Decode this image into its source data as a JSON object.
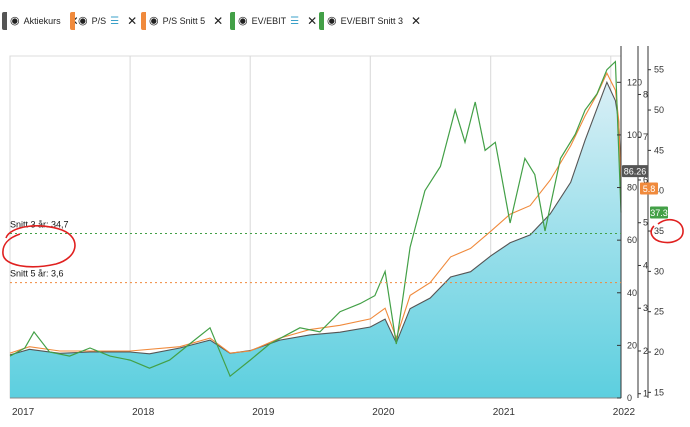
{
  "legend": {
    "items": [
      {
        "label": "Aktiekurs",
        "color": "#555555",
        "stack": false
      },
      {
        "label": "P/S",
        "color": "#f08a3c",
        "stack": true
      },
      {
        "label": "P/S Snitt 5",
        "color": "#f08a3c",
        "stack": false
      },
      {
        "label": "EV/EBIT",
        "color": "#43a047",
        "stack": true
      },
      {
        "label": "EV/EBIT Snitt 3",
        "color": "#43a047",
        "stack": false
      }
    ]
  },
  "chart_data": {
    "type": "line",
    "x_ticks": [
      "2017",
      "2018",
      "2019",
      "2020",
      "2021",
      "2022"
    ],
    "x_range": [
      "2017-01-01",
      "2022-02-01"
    ],
    "axes": {
      "price": {
        "ticks": [
          0,
          20,
          40,
          60,
          80,
          100,
          120
        ],
        "range": [
          0,
          130
        ]
      },
      "ps": {
        "ticks": [
          1,
          2,
          3,
          4,
          5,
          6,
          7,
          8
        ],
        "range": [
          0.9,
          8.9
        ]
      },
      "evebit": {
        "ticks": [
          15,
          20,
          25,
          30,
          35,
          40,
          45,
          50,
          55
        ],
        "range": [
          14.3,
          56.7
        ]
      }
    },
    "reference_lines": [
      {
        "label": "Snitt 3 år: 34,7",
        "value": 34.7,
        "axis": "evebit",
        "color": "#43a047"
      },
      {
        "label": "Snitt 5 år: 3,6",
        "value": 3.6,
        "axis": "ps",
        "color": "#f08a3c"
      }
    ],
    "end_labels": [
      {
        "value": "86.26",
        "color": "#555555"
      },
      {
        "value": "5.8",
        "color": "#f08a3c"
      },
      {
        "value": "37.3",
        "color": "#43a047"
      }
    ],
    "series": [
      {
        "name": "Aktiekurs",
        "axis": "price",
        "color": "#555555",
        "points": [
          [
            "2017-01-01",
            16.4
          ],
          [
            "2017-03-01",
            18.5
          ],
          [
            "2017-06-01",
            17
          ],
          [
            "2017-09-01",
            17.5
          ],
          [
            "2018-01-01",
            17.5
          ],
          [
            "2018-03-01",
            16.8
          ],
          [
            "2018-06-01",
            19
          ],
          [
            "2018-09-01",
            22
          ],
          [
            "2018-11-01",
            17
          ],
          [
            "2019-01-01",
            18
          ],
          [
            "2019-04-01",
            22
          ],
          [
            "2019-07-01",
            24
          ],
          [
            "2019-10-01",
            25
          ],
          [
            "2020-01-01",
            27
          ],
          [
            "2020-02-15",
            30
          ],
          [
            "2020-03-20",
            21
          ],
          [
            "2020-05-01",
            34
          ],
          [
            "2020-07-01",
            38
          ],
          [
            "2020-09-01",
            46
          ],
          [
            "2020-11-01",
            48
          ],
          [
            "2021-01-01",
            54
          ],
          [
            "2021-03-01",
            59
          ],
          [
            "2021-05-01",
            62
          ],
          [
            "2021-07-01",
            70
          ],
          [
            "2021-09-01",
            82
          ],
          [
            "2021-10-15",
            98
          ],
          [
            "2021-11-20",
            110
          ],
          [
            "2021-12-20",
            120
          ],
          [
            "2022-01-15",
            113
          ],
          [
            "2022-01-25",
            105
          ],
          [
            "2022-02-01",
            86.26
          ]
        ]
      },
      {
        "name": "P/S",
        "axis": "ps",
        "color": "#f08a3c",
        "points": [
          [
            "2017-01-01",
            1.95
          ],
          [
            "2017-03-01",
            2.1
          ],
          [
            "2017-06-01",
            2.0
          ],
          [
            "2017-09-01",
            2.0
          ],
          [
            "2018-01-01",
            2.0
          ],
          [
            "2018-06-01",
            2.1
          ],
          [
            "2018-09-01",
            2.3
          ],
          [
            "2018-11-01",
            1.95
          ],
          [
            "2019-01-01",
            2.0
          ],
          [
            "2019-04-01",
            2.3
          ],
          [
            "2019-07-01",
            2.5
          ],
          [
            "2019-10-01",
            2.6
          ],
          [
            "2020-01-01",
            2.75
          ],
          [
            "2020-02-15",
            3.0
          ],
          [
            "2020-03-20",
            2.3
          ],
          [
            "2020-05-01",
            3.3
          ],
          [
            "2020-07-01",
            3.6
          ],
          [
            "2020-09-01",
            4.2
          ],
          [
            "2020-11-01",
            4.4
          ],
          [
            "2021-01-01",
            4.8
          ],
          [
            "2021-03-01",
            5.2
          ],
          [
            "2021-05-01",
            5.4
          ],
          [
            "2021-07-01",
            6.0
          ],
          [
            "2021-09-01",
            6.8
          ],
          [
            "2021-10-15",
            7.5
          ],
          [
            "2021-11-20",
            8.0
          ],
          [
            "2021-12-20",
            8.5
          ],
          [
            "2022-01-15",
            8.1
          ],
          [
            "2022-01-25",
            7.4
          ],
          [
            "2022-02-01",
            5.8
          ]
        ]
      },
      {
        "name": "EV/EBIT",
        "axis": "evebit",
        "color": "#43a047",
        "points": [
          [
            "2017-01-01",
            19.5
          ],
          [
            "2017-02-15",
            20.5
          ],
          [
            "2017-03-15",
            22.5
          ],
          [
            "2017-05-01",
            20
          ],
          [
            "2017-07-01",
            19.5
          ],
          [
            "2017-09-01",
            20.5
          ],
          [
            "2017-11-01",
            19.5
          ],
          [
            "2018-01-01",
            19
          ],
          [
            "2018-03-01",
            18
          ],
          [
            "2018-05-01",
            19
          ],
          [
            "2018-07-01",
            21
          ],
          [
            "2018-09-01",
            23
          ],
          [
            "2018-11-01",
            17
          ],
          [
            "2019-01-01",
            19
          ],
          [
            "2019-03-01",
            21
          ],
          [
            "2019-06-01",
            23
          ],
          [
            "2019-08-01",
            22.5
          ],
          [
            "2019-10-01",
            25
          ],
          [
            "2019-12-01",
            26
          ],
          [
            "2020-01-15",
            27
          ],
          [
            "2020-02-15",
            30
          ],
          [
            "2020-03-20",
            21
          ],
          [
            "2020-05-01",
            33
          ],
          [
            "2020-06-15",
            40
          ],
          [
            "2020-08-01",
            43
          ],
          [
            "2020-09-15",
            50
          ],
          [
            "2020-10-15",
            46
          ],
          [
            "2020-11-15",
            51
          ],
          [
            "2020-12-15",
            45
          ],
          [
            "2021-01-15",
            46
          ],
          [
            "2021-03-01",
            36
          ],
          [
            "2021-04-15",
            44
          ],
          [
            "2021-05-15",
            42
          ],
          [
            "2021-06-15",
            35
          ],
          [
            "2021-08-01",
            44
          ],
          [
            "2021-09-15",
            47
          ],
          [
            "2021-10-15",
            50
          ],
          [
            "2021-11-20",
            52
          ],
          [
            "2021-12-20",
            55
          ],
          [
            "2022-01-15",
            56
          ],
          [
            "2022-01-25",
            45
          ],
          [
            "2022-02-01",
            37.3
          ]
        ]
      },
      {
        "name": "EV/EBIT Snitt 3",
        "axis": "evebit",
        "color": "#43a047",
        "dashed": true,
        "points": [
          [
            "2017-01-01",
            34.7
          ],
          [
            "2022-02-01",
            34.7
          ]
        ]
      },
      {
        "name": "P/S Snitt 5",
        "axis": "ps",
        "color": "#f08a3c",
        "dashed": true,
        "points": [
          [
            "2017-01-01",
            3.6
          ],
          [
            "2022-02-01",
            3.6
          ]
        ]
      }
    ],
    "annotation": {
      "type": "red-circle-hand-drawn"
    }
  }
}
